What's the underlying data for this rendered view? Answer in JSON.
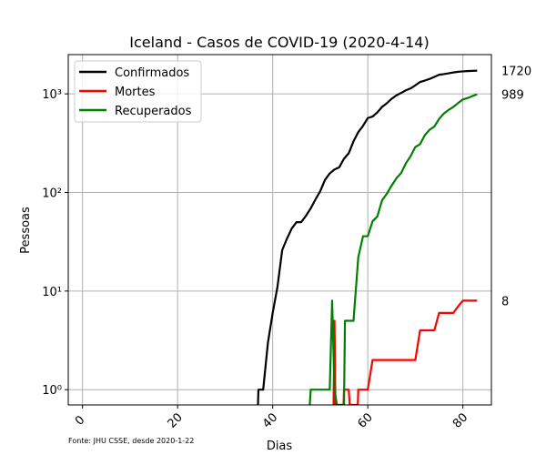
{
  "chart_data": {
    "type": "line",
    "title": "Iceland - Casos de COVID-19 (2020-4-14)",
    "xlabel": "Dias",
    "ylabel": "Pessoas",
    "xlim": [
      -3,
      86
    ],
    "ylim": [
      0.7,
      2500
    ],
    "yscale": "log",
    "grid": true,
    "legend_position": "top-left",
    "x_ticks": [
      0,
      20,
      40,
      60,
      80
    ],
    "y_ticks": [
      {
        "value": 1,
        "label": "10⁰"
      },
      {
        "value": 10,
        "label": "10¹"
      },
      {
        "value": 100,
        "label": "10²"
      },
      {
        "value": 1000,
        "label": "10³"
      }
    ],
    "end_labels": [
      "1720",
      "989",
      "8"
    ],
    "source": "Fonte: JHU CSSE, desde 2020-1-22",
    "series": [
      {
        "name": "Confirmados",
        "color": "#000000",
        "x": [
          36.9,
          37,
          38,
          39,
          40,
          41,
          42,
          43,
          44,
          45,
          46,
          47,
          48,
          49,
          50,
          51,
          52,
          53,
          54,
          55,
          56,
          57,
          58,
          59,
          60,
          61,
          62,
          63,
          64,
          65,
          66,
          67,
          68,
          69,
          70,
          71,
          72,
          73,
          74,
          75,
          76,
          77,
          78,
          79,
          80,
          81,
          82,
          83
        ],
        "y": [
          0.7,
          1,
          1,
          3,
          6,
          11,
          26,
          34,
          43,
          50,
          50,
          58,
          69,
          85,
          103,
          134,
          156,
          171,
          180,
          220,
          250,
          330,
          409,
          473,
          568,
          588,
          648,
          737,
          802,
          890,
          963,
          1020,
          1086,
          1135,
          1220,
          1319,
          1364,
          1417,
          1486,
          1562,
          1586,
          1616,
          1648,
          1675,
          1689,
          1701,
          1711,
          1720
        ]
      },
      {
        "name": "Mortes",
        "color": "#ff0000",
        "x": [
          52.8,
          53,
          53.2,
          54.9,
          55,
          56,
          56.2,
          57.9,
          58,
          59,
          60,
          61,
          62,
          63,
          64,
          65,
          66,
          67,
          68,
          69,
          70,
          71,
          72,
          73,
          74,
          75,
          76,
          77,
          78,
          79,
          80,
          81,
          82,
          83
        ],
        "y": [
          0.7,
          5,
          0.7,
          0.7,
          1,
          1,
          0.7,
          0.7,
          1,
          1,
          1,
          2,
          2,
          2,
          2,
          2,
          2,
          2,
          2,
          2,
          2,
          4,
          4,
          4,
          4,
          6,
          6,
          6,
          6,
          7,
          8,
          8,
          8,
          8
        ]
      },
      {
        "name": "Recuperados",
        "color": "#008000",
        "x": [
          47.8,
          48,
          49,
          50,
          51,
          52,
          52.5,
          53,
          53.5,
          55,
          55.2,
          56,
          57,
          58,
          59,
          60,
          61,
          62,
          63,
          64,
          65,
          66,
          67,
          68,
          69,
          70,
          71,
          72,
          73,
          74,
          75,
          76,
          77,
          78,
          79,
          80,
          81,
          82,
          83
        ],
        "y": [
          0.7,
          1,
          1,
          1,
          1,
          1,
          8,
          1,
          0.7,
          0.7,
          5,
          5,
          5,
          22,
          36,
          36,
          51,
          57,
          83,
          97,
          117,
          139,
          157,
          197,
          233,
          289,
          309,
          381,
          432,
          466,
          557,
          632,
          687,
          737,
          807,
          877,
          907,
          949,
          989
        ]
      }
    ]
  }
}
